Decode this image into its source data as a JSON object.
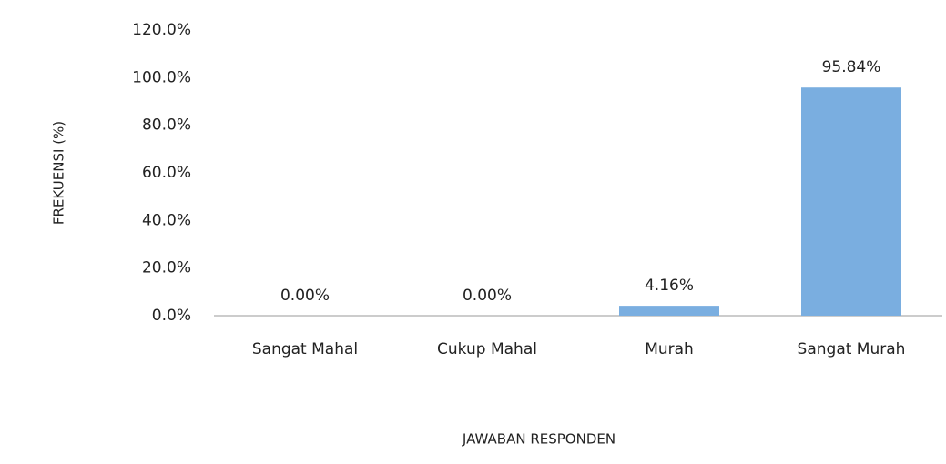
{
  "chart_data": {
    "type": "bar",
    "x_label": "JAWABAN RESPONDEN",
    "y_label": "FREKUENSI (%)",
    "categories": [
      "Sangat Mahal",
      "Cukup Mahal",
      "Murah",
      "Sangat Murah"
    ],
    "values": [
      0,
      0,
      4.16,
      95.84
    ],
    "value_labels": [
      "0.00%",
      "0.00%",
      "4.16%",
      "95.84%"
    ],
    "color": "#7aaee0",
    "ylim": [
      0,
      120
    ],
    "yticks": [
      {
        "value": 0,
        "label": "0.0%"
      },
      {
        "value": 20,
        "label": "20.0%"
      },
      {
        "value": 40,
        "label": "40.0%"
      },
      {
        "value": 60,
        "label": "60.0%"
      },
      {
        "value": 80,
        "label": "80.0%"
      },
      {
        "value": 100,
        "label": "100.0%"
      },
      {
        "value": 120,
        "label": "120.0%"
      }
    ],
    "grid": false
  }
}
